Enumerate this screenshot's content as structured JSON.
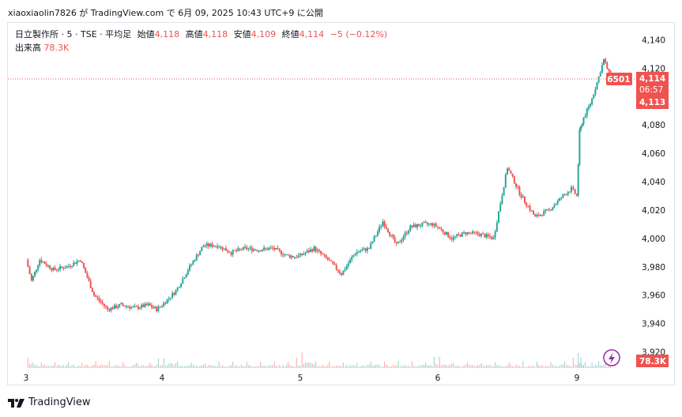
{
  "header": {
    "text": "xiaoxiaolin7826 が TradingView.com で 6月 09, 2025 10:43 UTC+9 に公開"
  },
  "legend": {
    "symbol": "日立製作所 · 5 · TSE · 平均足",
    "open_label": "始値",
    "open": "4,118",
    "high_label": "高値",
    "high": "4,118",
    "low_label": "安値",
    "low": "4,109",
    "close_label": "終値",
    "close": "4,114",
    "change": "−5 (−0.12%)",
    "volume_label": "出来高",
    "volume": "78.3K"
  },
  "price_tags": {
    "symbol_code": "6501",
    "last_price": "4,114",
    "countdown": "06:57",
    "bid": "4,113",
    "volume": "78.3K"
  },
  "footer": {
    "brand": "TradingView"
  },
  "colors": {
    "up": "#26a69a",
    "down": "#ef5350",
    "axis_text": "#131722",
    "grid": "#f0f3fa"
  },
  "chart_data": {
    "type": "line",
    "title": "",
    "xlabel": "",
    "ylabel": "",
    "x_ticks": [
      "3",
      "4",
      "5",
      "6",
      "9"
    ],
    "y_ticks": [
      "4,140",
      "4,120",
      "4,100",
      "4,080",
      "4,060",
      "4,040",
      "4,020",
      "4,000",
      "3,980",
      "3,960",
      "3,940",
      "3,920"
    ],
    "ylim": [
      3915,
      4145
    ],
    "grid": false,
    "series": [
      {
        "x": [
          0,
          0.04,
          0.1,
          0.2,
          0.3,
          0.4,
          0.5,
          0.6,
          0.7,
          0.8,
          0.9,
          0.96,
          1.0,
          1.1,
          1.2,
          1.3,
          1.4,
          1.5,
          1.6,
          1.7,
          1.8,
          1.9,
          1.96,
          2.0,
          2.1,
          2.2,
          2.3,
          2.4,
          2.5,
          2.6,
          2.7,
          2.8,
          2.9,
          2.96,
          3.0,
          3.1,
          3.2,
          3.3,
          3.4,
          3.5,
          3.6,
          3.7,
          3.8,
          3.9,
          3.96,
          4.0,
          4.02,
          4.05,
          4.1,
          4.15,
          4.2,
          4.25
        ],
        "values": [
          3985,
          3970,
          3985,
          3978,
          3980,
          3985,
          3960,
          3950,
          3953,
          3951,
          3953,
          3950,
          3953,
          3963,
          3980,
          3995,
          3995,
          3990,
          3993,
          3992,
          3993,
          3988,
          3987,
          3988,
          3993,
          3985,
          3975,
          3990,
          3993,
          4012,
          3995,
          4008,
          4010,
          4010,
          4008,
          4000,
          4004,
          4003,
          4000,
          4050,
          4030,
          4015,
          4020,
          4030,
          4035,
          4030,
          4075,
          4085,
          4095,
          4110,
          4126,
          4114
        ]
      }
    ],
    "volume_series": [
      2,
      1,
      1,
      1,
      1,
      1,
      1,
      1,
      1,
      1,
      1,
      2,
      2,
      1,
      1,
      1,
      1,
      1,
      1,
      1,
      1,
      1,
      2,
      3,
      1,
      1,
      1,
      1,
      1,
      1,
      1,
      1,
      1,
      2,
      2,
      1,
      1,
      1,
      1,
      1,
      1,
      1,
      1,
      1,
      2,
      3,
      2,
      1,
      1,
      1,
      1,
      1
    ]
  }
}
